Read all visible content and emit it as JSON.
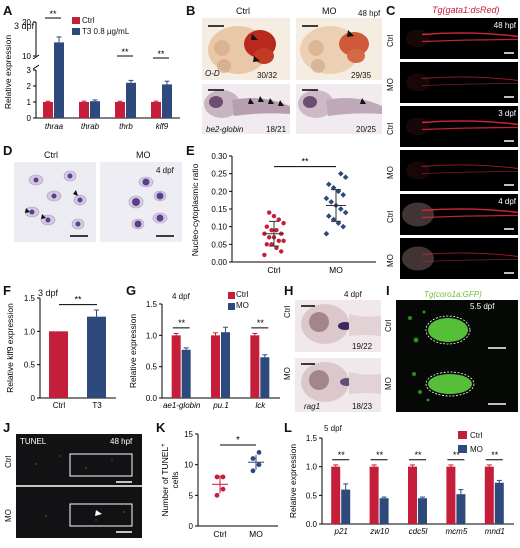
{
  "panels": {
    "A": {
      "letter": "A",
      "note": "3 dpf",
      "ylabel": "Relative expression",
      "legend": [
        "Ctrl",
        "T3 0.8 µg/mL"
      ],
      "sig": [
        "**",
        "**",
        "**"
      ]
    },
    "B": {
      "letter": "B",
      "col_ctrl": "Ctrl",
      "col_mo": "MO",
      "note": "48 hpf",
      "stain_top": "O-D",
      "stain_bottom": "be2-globin",
      "counts": [
        "30/32",
        "29/35",
        "18/21",
        "20/25"
      ]
    },
    "C": {
      "letter": "C",
      "transgene": "Tg(gata1:dsRed)",
      "stages": [
        "48 hpf",
        "3 dpf",
        "4 dpf"
      ],
      "rows": [
        "Ctrl",
        "MO",
        "Ctrl",
        "MO",
        "Ctrl",
        "MO"
      ]
    },
    "D": {
      "letter": "D",
      "col_ctrl": "Ctrl",
      "col_mo": "MO",
      "note": "4 dpf"
    },
    "E": {
      "letter": "E",
      "ylabel": "Nucleo-cytoplasmic ratio",
      "sig": "**"
    },
    "F": {
      "letter": "F",
      "note": "3 dpf",
      "ylabel": "Relative klf9 expression",
      "sig": "**"
    },
    "G": {
      "letter": "G",
      "note": "4 dpf",
      "ylabel": "Relative expression",
      "legend": [
        "Ctrl",
        "MO"
      ],
      "sig": [
        "**",
        "**"
      ]
    },
    "H": {
      "letter": "H",
      "note": "4 dpf",
      "rows": [
        "Ctrl",
        "MO"
      ],
      "gene": "rag1",
      "counts": [
        "19/22",
        "18/23"
      ]
    },
    "I": {
      "letter": "I",
      "transgene": "Tg(coro1a:GFP)",
      "note": "5.5 dpf",
      "rows": [
        "Ctrl",
        "MO"
      ]
    },
    "J": {
      "letter": "J",
      "assay": "TUNEL",
      "note": "48 hpf",
      "rows": [
        "Ctrl",
        "MO"
      ]
    },
    "K": {
      "letter": "K",
      "ylabel_a": "Number of TUNEL",
      "ylabel_sup": "+",
      "ylabel_b": "cells",
      "sig": "*"
    },
    "L": {
      "letter": "L",
      "note": "5 dpf",
      "ylabel": "Relative expression",
      "legend": [
        "Ctrl",
        "MO"
      ],
      "sig": [
        "**",
        "**",
        "**",
        "**",
        "**"
      ]
    }
  },
  "colors": {
    "ctrl": "#c41e3a",
    "treat": "#2e4a7d",
    "sig": "#000000"
  },
  "chart_data": [
    {
      "id": "A",
      "type": "bar",
      "categories": [
        "thraa",
        "thrab",
        "thrb",
        "klf9"
      ],
      "series": [
        {
          "name": "Ctrl",
          "values": [
            1,
            1,
            1,
            1
          ],
          "errors": [
            0.05,
            0.05,
            0.05,
            0.05
          ]
        },
        {
          "name": "T3 0.8 µg/mL",
          "values": [
            14,
            1.05,
            2.2,
            2.1
          ],
          "errors": [
            1.6,
            0.08,
            0.15,
            0.2
          ]
        }
      ],
      "ylabel": "Relative expression",
      "yscale": "broken",
      "yticks": [
        "0",
        "1",
        "2",
        "3",
        "10",
        "20"
      ],
      "ylim": [
        0,
        20
      ]
    },
    {
      "id": "E",
      "type": "scatter",
      "categories": [
        "Ctrl",
        "MO"
      ],
      "series": [
        {
          "name": "Ctrl",
          "values": [
            0.02,
            0.03,
            0.04,
            0.05,
            0.05,
            0.06,
            0.06,
            0.07,
            0.07,
            0.08,
            0.08,
            0.09,
            0.09,
            0.1,
            0.11,
            0.12,
            0.13,
            0.14
          ],
          "mean": 0.08,
          "sd": 0.035
        },
        {
          "name": "MO",
          "values": [
            0.08,
            0.1,
            0.11,
            0.12,
            0.13,
            0.14,
            0.15,
            0.16,
            0.17,
            0.18,
            0.19,
            0.2,
            0.21,
            0.22,
            0.24,
            0.25
          ],
          "mean": 0.16,
          "sd": 0.045
        }
      ],
      "ylabel": "Nucleo-cytoplasmic ratio",
      "yticks": [
        "0.00",
        "0.05",
        "0.10",
        "0.15",
        "0.20",
        "0.25",
        "0.30"
      ],
      "ylim": [
        0,
        0.3
      ]
    },
    {
      "id": "F",
      "type": "bar",
      "categories": [
        "Ctrl",
        "T3"
      ],
      "values": [
        1.0,
        1.22
      ],
      "errors": [
        0.0,
        0.1
      ],
      "ylabel": "Relative klf9 expression",
      "yticks": [
        "0",
        "0.5",
        "1.0",
        "1.5"
      ],
      "ylim": [
        0,
        1.5
      ]
    },
    {
      "id": "G",
      "type": "bar",
      "categories": [
        "ae1-globin",
        "pu.1",
        "lck"
      ],
      "series": [
        {
          "name": "Ctrl",
          "values": [
            1,
            1,
            1
          ],
          "errors": [
            0.03,
            0.04,
            0.03
          ]
        },
        {
          "name": "MO",
          "values": [
            0.77,
            1.05,
            0.65
          ],
          "errors": [
            0.03,
            0.08,
            0.04
          ]
        }
      ],
      "ylabel": "Relative expression",
      "yticks": [
        "0.0",
        "0.5",
        "1.0",
        "1.5"
      ],
      "ylim": [
        0,
        1.5
      ]
    },
    {
      "id": "K",
      "type": "scatter",
      "categories": [
        "Ctrl",
        "MO"
      ],
      "series": [
        {
          "name": "Ctrl",
          "values": [
            5,
            6,
            8,
            8
          ],
          "mean": 6.8,
          "sd": 1.5
        },
        {
          "name": "MO",
          "values": [
            9,
            10,
            11,
            12
          ],
          "mean": 10.4,
          "sd": 1.2
        }
      ],
      "ylabel": "Number of TUNEL+ cells",
      "yticks": [
        "0",
        "5",
        "10",
        "15"
      ],
      "ylim": [
        0,
        15
      ]
    },
    {
      "id": "L",
      "type": "bar",
      "categories": [
        "p21",
        "zw10",
        "cdc5l",
        "mcm5",
        "mnd1"
      ],
      "series": [
        {
          "name": "Ctrl",
          "values": [
            1,
            1,
            1,
            1,
            1
          ],
          "errors": [
            0.03,
            0.03,
            0.03,
            0.03,
            0.03
          ]
        },
        {
          "name": "MO",
          "values": [
            0.6,
            0.45,
            0.45,
            0.52,
            0.72
          ],
          "errors": [
            0.1,
            0.02,
            0.02,
            0.08,
            0.04
          ]
        }
      ],
      "ylabel": "Relative expression",
      "yticks": [
        "0.0",
        "0.5",
        "1.0",
        "1.5"
      ],
      "ylim": [
        0,
        1.5
      ]
    }
  ]
}
